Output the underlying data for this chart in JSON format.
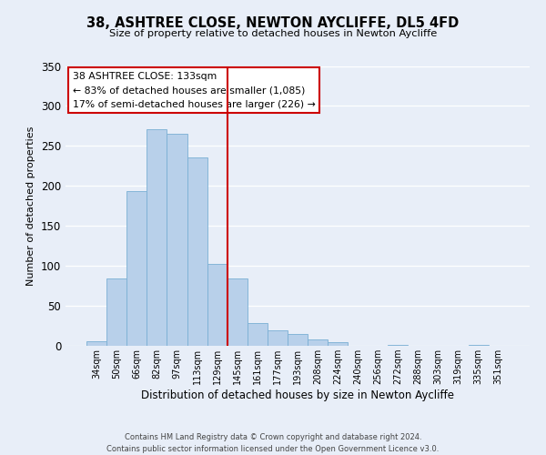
{
  "title": "38, ASHTREE CLOSE, NEWTON AYCLIFFE, DL5 4FD",
  "subtitle": "Size of property relative to detached houses in Newton Aycliffe",
  "xlabel": "Distribution of detached houses by size in Newton Aycliffe",
  "ylabel": "Number of detached properties",
  "bar_labels": [
    "34sqm",
    "50sqm",
    "66sqm",
    "82sqm",
    "97sqm",
    "113sqm",
    "129sqm",
    "145sqm",
    "161sqm",
    "177sqm",
    "193sqm",
    "208sqm",
    "224sqm",
    "240sqm",
    "256sqm",
    "272sqm",
    "288sqm",
    "303sqm",
    "319sqm",
    "335sqm",
    "351sqm"
  ],
  "bar_values": [
    6,
    84,
    193,
    271,
    265,
    236,
    102,
    84,
    28,
    19,
    15,
    8,
    5,
    0,
    0,
    1,
    0,
    0,
    0,
    1,
    0
  ],
  "bar_color": "#b8d0ea",
  "bar_edge_color": "#7aafd4",
  "vline_x_index": 6,
  "vline_color": "#cc0000",
  "annotation_lines": [
    "38 ASHTREE CLOSE: 133sqm",
    "← 83% of detached houses are smaller (1,085)",
    "17% of semi-detached houses are larger (226) →"
  ],
  "annotation_box_color": "#ffffff",
  "annotation_box_edge_color": "#cc0000",
  "ylim": [
    0,
    350
  ],
  "yticks": [
    0,
    50,
    100,
    150,
    200,
    250,
    300,
    350
  ],
  "footer_lines": [
    "Contains HM Land Registry data © Crown copyright and database right 2024.",
    "Contains public sector information licensed under the Open Government Licence v3.0."
  ],
  "bg_color": "#e8eef8",
  "grid_color": "#ffffff"
}
